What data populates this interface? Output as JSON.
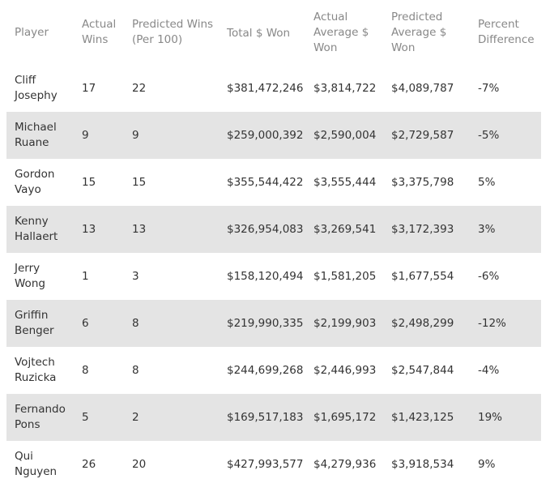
{
  "table": {
    "headers": {
      "player": "Player",
      "actual_wins": "Actual Wins",
      "predicted_wins": "Predicted Wins (Per 100)",
      "total_won": "Total $ Won",
      "actual_avg": "Actual Average $ Won",
      "predicted_avg": "Predicted Average $ Won",
      "percent_diff": "Percent Difference"
    },
    "rows": [
      {
        "player": "Cliff Josephy",
        "actual_wins": "17",
        "predicted_wins": "22",
        "total_won": "$381,472,246",
        "actual_avg": "$3,814,722",
        "predicted_avg": "$4,089,787",
        "percent_diff": "-7%"
      },
      {
        "player": "Michael Ruane",
        "actual_wins": "9",
        "predicted_wins": "9",
        "total_won": "$259,000,392",
        "actual_avg": "$2,590,004",
        "predicted_avg": "$2,729,587",
        "percent_diff": "-5%"
      },
      {
        "player": "Gordon Vayo",
        "actual_wins": "15",
        "predicted_wins": "15",
        "total_won": "$355,544,422",
        "actual_avg": "$3,555,444",
        "predicted_avg": "$3,375,798",
        "percent_diff": "5%"
      },
      {
        "player": "Kenny Hallaert",
        "actual_wins": "13",
        "predicted_wins": "13",
        "total_won": "$326,954,083",
        "actual_avg": "$3,269,541",
        "predicted_avg": "$3,172,393",
        "percent_diff": "3%"
      },
      {
        "player": "Jerry Wong",
        "actual_wins": "1",
        "predicted_wins": "3",
        "total_won": "$158,120,494",
        "actual_avg": "$1,581,205",
        "predicted_avg": "$1,677,554",
        "percent_diff": "-6%"
      },
      {
        "player": "Griffin Benger",
        "actual_wins": "6",
        "predicted_wins": "8",
        "total_won": "$219,990,335",
        "actual_avg": "$2,199,903",
        "predicted_avg": "$2,498,299",
        "percent_diff": "-12%"
      },
      {
        "player": "Vojtech Ruzicka",
        "actual_wins": "8",
        "predicted_wins": "8",
        "total_won": "$244,699,268",
        "actual_avg": "$2,446,993",
        "predicted_avg": "$2,547,844",
        "percent_diff": "-4%"
      },
      {
        "player": "Fernando Pons",
        "actual_wins": "5",
        "predicted_wins": "2",
        "total_won": "$169,517,183",
        "actual_avg": "$1,695,172",
        "predicted_avg": "$1,423,125",
        "percent_diff": "19%"
      },
      {
        "player": "Qui Nguyen",
        "actual_wins": "26",
        "predicted_wins": "20",
        "total_won": "$427,993,577",
        "actual_avg": "$4,279,936",
        "predicted_avg": "$3,918,534",
        "percent_diff": "9%"
      }
    ]
  }
}
